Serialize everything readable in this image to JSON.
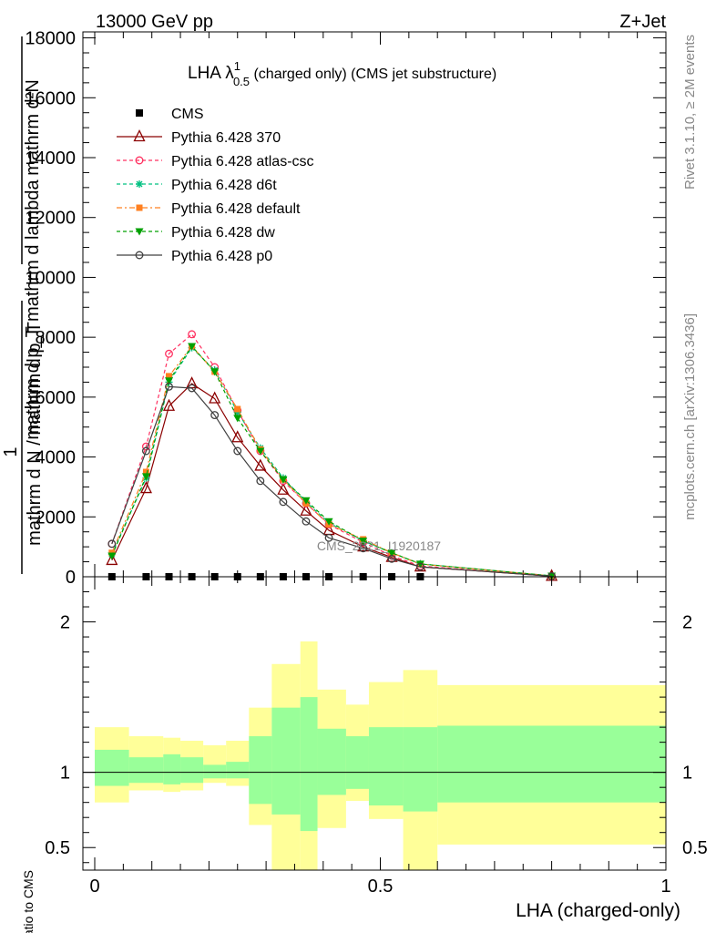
{
  "header": {
    "left": "13000 GeV pp",
    "right": "Z+Jet"
  },
  "side": {
    "top": "Rivet 3.1.10, ≥ 2M events",
    "bottom": "mcplots.cern.ch [arXiv:1306.3436]"
  },
  "chart_data": [
    {
      "type": "line",
      "title_main": "LHA λ",
      "title_sup": "1",
      "title_sub": "0.5",
      "title_rest": " (charged only) (CMS jet substructure)",
      "ylabel": "1 / mathrm d N / mathrm d p_T  mathrm d²N / mathrm d p_T mathrm d lambda",
      "ylabel_line1": "mathrm d²N",
      "ylabel_line2": "mathrm d p_T mathrm d lambda",
      "ylabel_line3": "1",
      "ylabel_line4": "mathrm d N / mathrm d p_T",
      "ylim": [
        0,
        18200
      ],
      "yticks": [
        0,
        2000,
        4000,
        6000,
        8000,
        10000,
        12000,
        14000,
        16000,
        18000
      ],
      "ytick_labels": [
        "0",
        "2000",
        "4000",
        "6000",
        "8000",
        "10000",
        "12000",
        "14000",
        "16000",
        "18000"
      ],
      "xlim": [
        -0.03,
        1.0
      ],
      "watermark": "CMS_2021_I1920187",
      "legend_position": "top-left",
      "x": [
        0.03,
        0.09,
        0.13,
        0.17,
        0.21,
        0.25,
        0.29,
        0.33,
        0.37,
        0.41,
        0.47,
        0.52,
        0.57,
        0.8
      ],
      "series": [
        {
          "name": "CMS",
          "color": "#000000",
          "marker": "square",
          "style": "none",
          "values": [
            0,
            0,
            0,
            0,
            0,
            0,
            0,
            0,
            0,
            0,
            0,
            0,
            0,
            null
          ]
        },
        {
          "name": "Pythia 6.428 370",
          "color": "#8b0000",
          "marker": "triangle-open",
          "style": "solid",
          "values": [
            550,
            2950,
            5700,
            6450,
            5950,
            4650,
            3700,
            2900,
            2200,
            1550,
            1000,
            650,
            330,
            20
          ]
        },
        {
          "name": "Pythia 6.428 atlas-csc",
          "color": "#ff3060",
          "marker": "circle-open",
          "style": "dashed",
          "values": [
            1100,
            4350,
            7450,
            8100,
            7000,
            5550,
            4200,
            3200,
            2450,
            1750,
            1150,
            700,
            360,
            20
          ]
        },
        {
          "name": "Pythia 6.428 d6t",
          "color": "#00c080",
          "marker": "star",
          "style": "dashed",
          "values": [
            750,
            3300,
            6500,
            7650,
            6900,
            5500,
            4300,
            3300,
            2500,
            1800,
            1200,
            800,
            430,
            30
          ]
        },
        {
          "name": "Pythia 6.428 default",
          "color": "#ff8020",
          "marker": "square-filled",
          "style": "dashdot",
          "values": [
            800,
            3500,
            6700,
            7700,
            6850,
            5600,
            4250,
            3250,
            2450,
            1750,
            1250,
            800,
            420,
            30
          ]
        },
        {
          "name": "Pythia 6.428 dw",
          "color": "#00a000",
          "marker": "triangle-down",
          "style": "dashed",
          "values": [
            700,
            3350,
            6550,
            7700,
            6850,
            5300,
            4200,
            3250,
            2550,
            1850,
            1200,
            800,
            430,
            30
          ]
        },
        {
          "name": "Pythia 6.428 p0",
          "color": "#404040",
          "marker": "circle-open",
          "style": "solid",
          "values": [
            1100,
            4200,
            6350,
            6300,
            5400,
            4200,
            3200,
            2500,
            1850,
            1300,
            950,
            600,
            330,
            20
          ]
        }
      ]
    },
    {
      "type": "area",
      "xlabel": "LHA (charged-only)",
      "ylabel": "Ratio to CMS",
      "ylim": [
        0.35,
        2.3
      ],
      "yticks": [
        0.5,
        1,
        2
      ],
      "ytick_labels": [
        "0.5",
        "1",
        "2"
      ],
      "xticks": [
        0,
        0.5,
        1
      ],
      "xtick_labels": [
        "0",
        "0.5",
        "1"
      ],
      "reference_line": 1,
      "bin_edges": [
        0.0,
        0.06,
        0.12,
        0.15,
        0.19,
        0.23,
        0.27,
        0.31,
        0.36,
        0.39,
        0.44,
        0.48,
        0.54,
        0.6,
        1.0
      ],
      "band_1sigma": {
        "color": "#99ff99",
        "lower": [
          0.91,
          0.93,
          0.92,
          0.93,
          0.96,
          0.96,
          0.79,
          0.72,
          0.61,
          0.85,
          0.89,
          0.78,
          0.74,
          0.8
        ],
        "upper": [
          1.15,
          1.1,
          1.12,
          1.1,
          1.05,
          1.07,
          1.24,
          1.43,
          1.5,
          1.29,
          1.24,
          1.3,
          1.3,
          1.31
        ]
      },
      "band_2sigma": {
        "color": "#ffff99",
        "lower": [
          0.8,
          0.88,
          0.87,
          0.88,
          0.93,
          0.91,
          0.65,
          0.35,
          0.35,
          0.63,
          0.81,
          0.69,
          0.35,
          0.52
        ],
        "upper": [
          1.3,
          1.24,
          1.23,
          1.21,
          1.18,
          1.21,
          1.43,
          1.72,
          1.87,
          1.55,
          1.45,
          1.6,
          1.68,
          1.58
        ]
      }
    }
  ]
}
